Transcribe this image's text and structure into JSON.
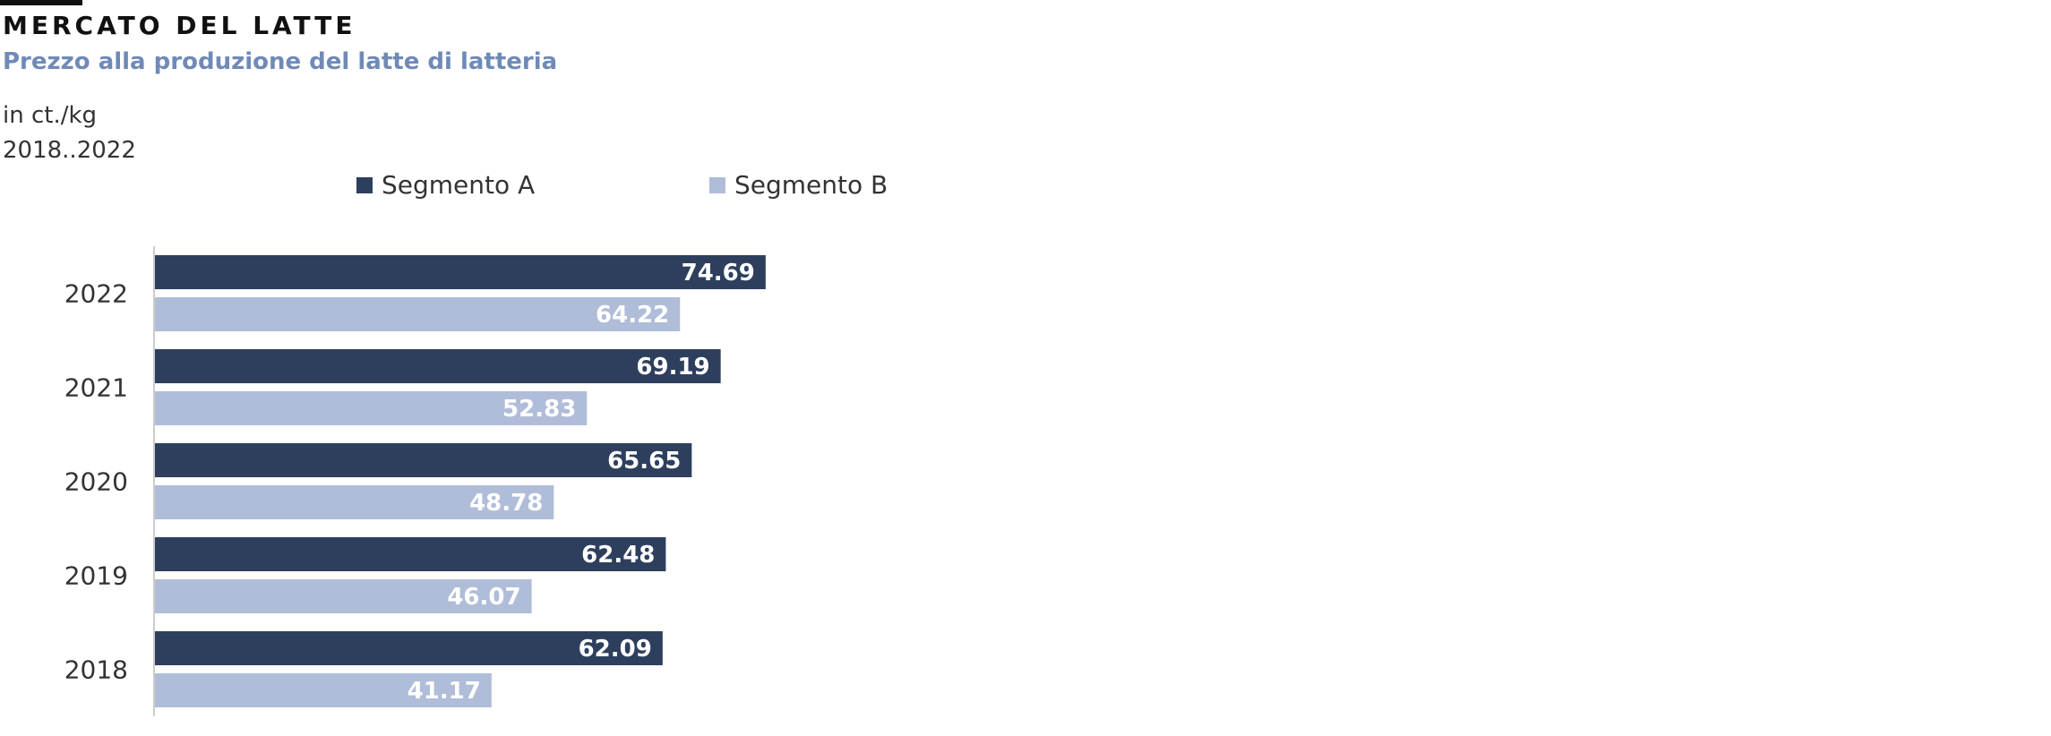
{
  "header": {
    "title": "MERCATO DEL LATTE",
    "subtitle": "Prezzo alla produzione del latte di latteria",
    "unit": "in ct./kg",
    "range": "2018..2022"
  },
  "colors": {
    "segment_a": "#2e3f5e",
    "segment_b": "#b0bdd9",
    "subtitle": "#6f8ab7",
    "axis": "#cccccc"
  },
  "chart_data": {
    "type": "bar",
    "orientation": "horizontal",
    "categories": [
      "2022",
      "2021",
      "2020",
      "2019",
      "2018"
    ],
    "series": [
      {
        "name": "Segmento A",
        "values": [
          74.69,
          69.19,
          65.65,
          62.48,
          62.09
        ]
      },
      {
        "name": "Segmento B",
        "values": [
          64.22,
          52.83,
          48.78,
          46.07,
          41.17
        ]
      }
    ],
    "xlim": [
      0,
      232
    ],
    "grid": false,
    "legend": "top",
    "data_labels": true
  }
}
